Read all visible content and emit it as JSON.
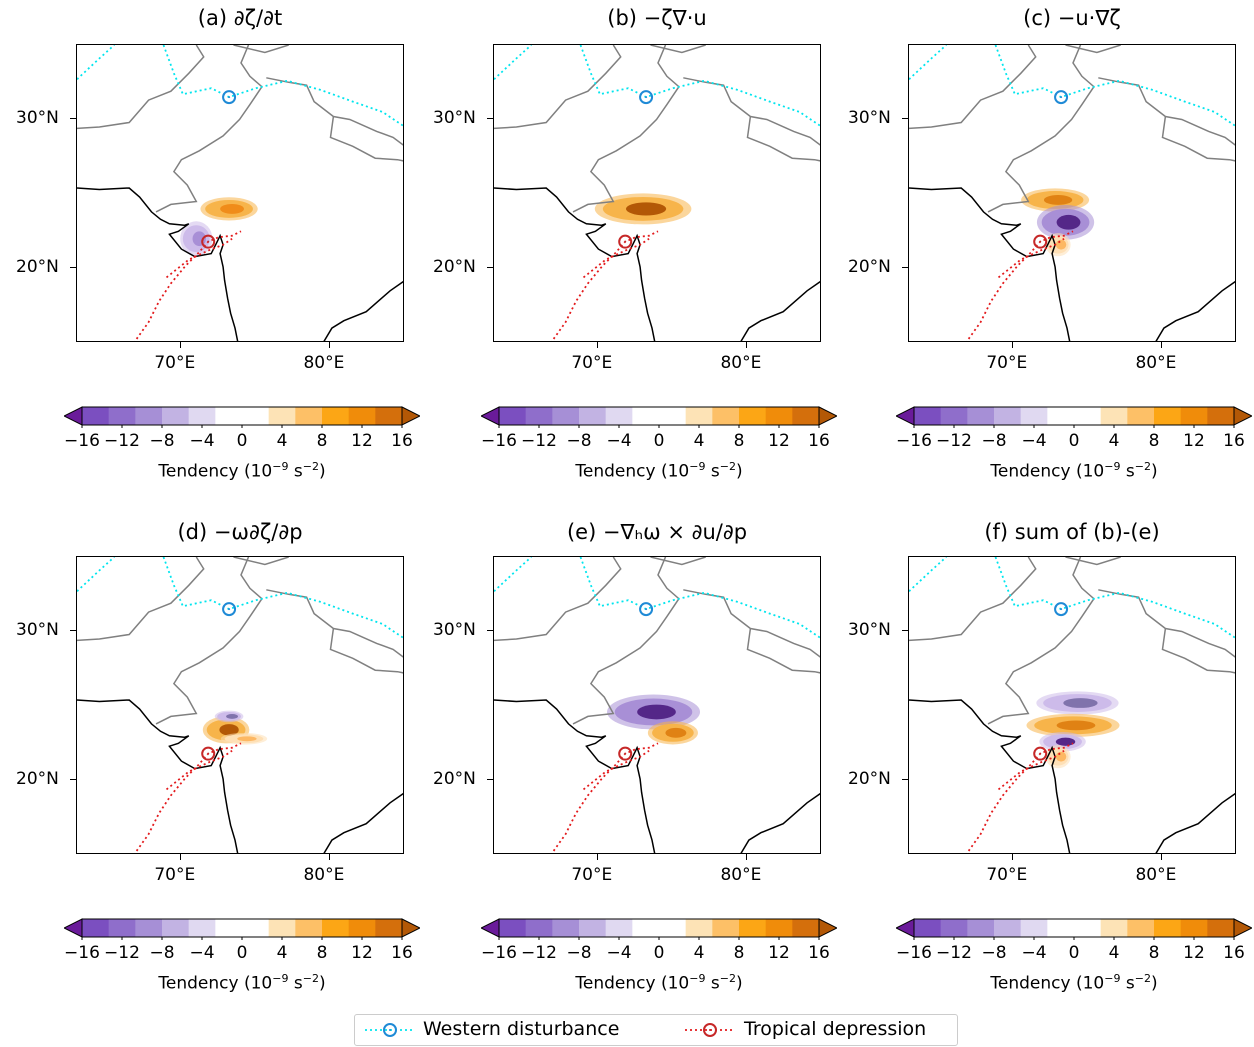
{
  "panels": [
    {
      "title": "(a) ∂ζ/∂t",
      "blobs": [
        {
          "cx": 73.2,
          "cy": 24.0,
          "rx": 1.6,
          "ry": 0.6,
          "color": "#f7b44a",
          "core": "#f08c1a"
        },
        {
          "cx": 71.0,
          "cy": 22.0,
          "rx": 0.9,
          "ry": 0.9,
          "color": "#cdbbea",
          "core": "#a88fd6"
        }
      ]
    },
    {
      "title": "(b) −ζ∇·u",
      "blobs": [
        {
          "cx": 73.0,
          "cy": 24.0,
          "rx": 2.7,
          "ry": 0.8,
          "color": "#f7b44a",
          "core": "#b35806"
        }
      ]
    },
    {
      "title": "(c) −u·∇ζ",
      "blobs": [
        {
          "cx": 72.8,
          "cy": 24.6,
          "rx": 1.9,
          "ry": 0.6,
          "color": "#f7b44a",
          "core": "#e08214"
        },
        {
          "cx": 73.5,
          "cy": 23.1,
          "rx": 1.6,
          "ry": 0.9,
          "color": "#a88fd6",
          "core": "#542788"
        },
        {
          "cx": 73.0,
          "cy": 21.6,
          "rx": 0.7,
          "ry": 0.6,
          "color": "#fee0b6",
          "core": "#fdb863"
        }
      ]
    },
    {
      "title": "(d) −ω∂ζ/∂p",
      "blobs": [
        {
          "cx": 73.0,
          "cy": 23.4,
          "rx": 1.3,
          "ry": 0.7,
          "color": "#f7b44a",
          "core": "#b35806"
        },
        {
          "cx": 74.2,
          "cy": 22.8,
          "rx": 1.3,
          "ry": 0.3,
          "color": "#fee0b6",
          "core": "#fdb863"
        },
        {
          "cx": 73.2,
          "cy": 24.3,
          "rx": 0.8,
          "ry": 0.3,
          "color": "#cdbbea",
          "core": "#8073ac"
        }
      ]
    },
    {
      "title": "(e) −∇ₕω × ∂u/∂p",
      "blobs": [
        {
          "cx": 73.7,
          "cy": 24.6,
          "rx": 2.6,
          "ry": 0.9,
          "color": "#a88fd6",
          "core": "#542788"
        },
        {
          "cx": 75.0,
          "cy": 23.2,
          "rx": 1.4,
          "ry": 0.6,
          "color": "#f7b44a",
          "core": "#e08214"
        }
      ]
    },
    {
      "title": "(f) sum of (b)-(e)",
      "blobs": [
        {
          "cx": 74.3,
          "cy": 25.2,
          "rx": 2.3,
          "ry": 0.6,
          "color": "#cdbbea",
          "core": "#8073ac"
        },
        {
          "cx": 74.0,
          "cy": 23.7,
          "rx": 2.6,
          "ry": 0.6,
          "color": "#f7b44a",
          "core": "#e08214"
        },
        {
          "cx": 73.3,
          "cy": 22.6,
          "rx": 1.3,
          "ry": 0.5,
          "color": "#cdbbea",
          "core": "#542788"
        },
        {
          "cx": 73.0,
          "cy": 21.6,
          "rx": 0.7,
          "ry": 0.6,
          "color": "#fee0b6",
          "core": "#fdb863"
        }
      ]
    }
  ],
  "axes": {
    "lon_ticks": [
      "70°E",
      "80°E"
    ],
    "lat_ticks": [
      "30°N",
      "20°N"
    ],
    "lon_values": [
      70,
      80
    ],
    "lat_values": [
      30,
      20
    ],
    "lon_range": [
      63,
      85
    ],
    "lat_range": [
      15,
      35
    ]
  },
  "colorbar": {
    "ticks": [
      "−16",
      "−12",
      "−8",
      "−4",
      "0",
      "4",
      "8",
      "12",
      "16"
    ],
    "label_main": "Tendency (10",
    "label_exp": "−9",
    "label_mid": " s",
    "label_exp2": "−2",
    "label_end": ")",
    "colors": [
      "#6a1b9a",
      "#7b4fc0",
      "#8f6ecb",
      "#a68fd6",
      "#c2b3e3",
      "#e0d9f1",
      "#ffffff",
      "#ffffff",
      "#fde3b6",
      "#fdc067",
      "#fca615",
      "#f08c0a",
      "#d46f0c",
      "#b35806"
    ]
  },
  "tracks": {
    "western_disturbance": {
      "color": "#00e5ee",
      "marker_color": "#1f8ad6",
      "marker": [
        73.2,
        31.5
      ]
    },
    "tropical_depression": {
      "color": "#e31a1c",
      "marker_color": "#c62828",
      "marker": [
        71.8,
        21.8
      ]
    }
  },
  "legend": {
    "items": [
      {
        "label": "Western disturbance"
      },
      {
        "label": "Tropical depression"
      }
    ]
  }
}
